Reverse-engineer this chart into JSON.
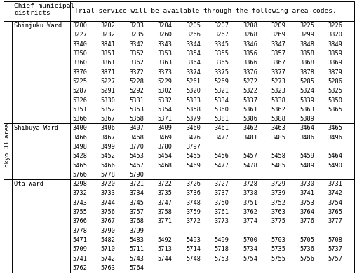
{
  "title_col1": "Chief municipal\ndistricts",
  "title_col2": "Trial service will be available through the following area codes.",
  "vertical_label": "Tokyo 03 area",
  "sections": [
    {
      "ward": "Shinjuku Ward",
      "codes": [
        [
          "3200",
          "3202",
          "3203",
          "3204",
          "3205",
          "3207",
          "3208",
          "3209",
          "3225",
          "3226"
        ],
        [
          "3227",
          "3232",
          "3235",
          "3260",
          "3266",
          "3267",
          "3268",
          "3269",
          "3299",
          "3320"
        ],
        [
          "3340",
          "3341",
          "3342",
          "3343",
          "3344",
          "3345",
          "3346",
          "3347",
          "3348",
          "3349"
        ],
        [
          "3350",
          "3351",
          "3352",
          "3353",
          "3354",
          "3355",
          "3356",
          "3357",
          "3358",
          "3359"
        ],
        [
          "3360",
          "3361",
          "3362",
          "3363",
          "3364",
          "3365",
          "3366",
          "3367",
          "3368",
          "3369"
        ],
        [
          "3370",
          "3371",
          "3372",
          "3373",
          "3374",
          "3375",
          "3376",
          "3377",
          "3378",
          "3379"
        ],
        [
          "5225",
          "5227",
          "5228",
          "5229",
          "5261",
          "5269",
          "5272",
          "5273",
          "5285",
          "5286"
        ],
        [
          "5287",
          "5291",
          "5292",
          "5302",
          "5320",
          "5321",
          "5322",
          "5323",
          "5324",
          "5325"
        ],
        [
          "5326",
          "5330",
          "5331",
          "5332",
          "5333",
          "5334",
          "5337",
          "5338",
          "5339",
          "5350"
        ],
        [
          "5351",
          "5352",
          "5353",
          "5354",
          "5358",
          "5360",
          "5361",
          "5362",
          "5363",
          "5365"
        ],
        [
          "5366",
          "5367",
          "5368",
          "5371",
          "5379",
          "5381",
          "5386",
          "5388",
          "5389",
          ""
        ]
      ]
    },
    {
      "ward": "Shibuya Ward",
      "codes": [
        [
          "3400",
          "3406",
          "3407",
          "3409",
          "3460",
          "3461",
          "3462",
          "3463",
          "3464",
          "3465"
        ],
        [
          "3466",
          "3467",
          "3468",
          "3469",
          "3476",
          "3477",
          "3481",
          "3485",
          "3486",
          "3496"
        ],
        [
          "3498",
          "3499",
          "3770",
          "3780",
          "3797",
          "",
          "",
          "",
          "",
          ""
        ],
        [
          "5428",
          "5452",
          "5453",
          "5454",
          "5455",
          "5456",
          "5457",
          "5458",
          "5459",
          "5464"
        ],
        [
          "5465",
          "5466",
          "5467",
          "5468",
          "5469",
          "5477",
          "5478",
          "5485",
          "5489",
          "5490"
        ],
        [
          "5766",
          "5778",
          "5790",
          "",
          "",
          "",
          "",
          "",
          "",
          ""
        ]
      ]
    },
    {
      "ward": "Ota Ward",
      "codes": [
        [
          "3298",
          "3720",
          "3721",
          "3722",
          "3726",
          "3727",
          "3728",
          "3729",
          "3730",
          "3731"
        ],
        [
          "3732",
          "3733",
          "3734",
          "3735",
          "3736",
          "3737",
          "3738",
          "3739",
          "3741",
          "3742"
        ],
        [
          "3743",
          "3744",
          "3745",
          "3747",
          "3748",
          "3750",
          "3751",
          "3752",
          "3753",
          "3754"
        ],
        [
          "3755",
          "3756",
          "3757",
          "3758",
          "3759",
          "3761",
          "3762",
          "3763",
          "3764",
          "3765"
        ],
        [
          "3766",
          "3767",
          "3768",
          "3771",
          "3772",
          "3773",
          "3774",
          "3775",
          "3776",
          "3777"
        ],
        [
          "3778",
          "3790",
          "3799",
          "",
          "",
          "",
          "",
          "",
          "",
          ""
        ],
        [
          "5471",
          "5482",
          "5483",
          "5492",
          "5493",
          "5499",
          "5700",
          "5703",
          "5705",
          "5708"
        ],
        [
          "5709",
          "5710",
          "5711",
          "5713",
          "5714",
          "5718",
          "5734",
          "5735",
          "5736",
          "5737"
        ],
        [
          "5741",
          "5742",
          "5743",
          "5744",
          "5748",
          "5753",
          "5754",
          "5755",
          "5756",
          "5757"
        ],
        [
          "5762",
          "5763",
          "5764",
          "",
          "",
          "",
          "",
          "",
          "",
          ""
        ]
      ]
    }
  ],
  "bg_color": "#ffffff",
  "line_color": "#000000",
  "font_size": 6.2,
  "header_font_size": 6.8
}
